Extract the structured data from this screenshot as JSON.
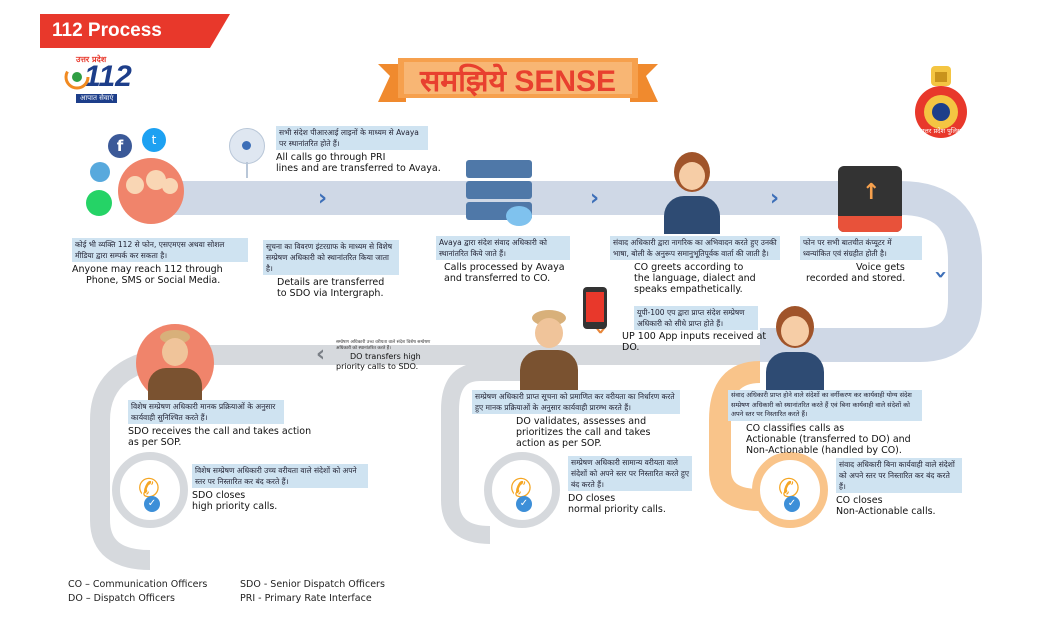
{
  "header": {
    "badge_label": "112 Process",
    "logo_top": "उत्तर प्रदेश",
    "logo_number": "112",
    "logo_bottom": "आपात सेवाएं",
    "badge_color": "#e8382b"
  },
  "banner": {
    "title": "समझिये  SENSE",
    "banner_color": "#f6a04d",
    "title_color": "#e8402f"
  },
  "emblem": {
    "text": "उत्तर प्रदेश पुलिस"
  },
  "colors": {
    "top_track": "#cfd8e6",
    "middle_track": "#d6d9dd",
    "orange_track": "#f9c48a",
    "chevron": "#3d6fb8",
    "phone_badge": "#f5a623"
  },
  "steps": [
    {
      "hi": "कोई भी व्यक्ति 112 से फोन, एसएमएस अथवा सोशल मीडिया द्वारा सम्पर्क कर सकता है।",
      "en_1": "Anyone may reach 112 through",
      "en_2": "Phone, SMS or Social Media."
    },
    {
      "hi": "सभी संदेश पीआरआई लाइनों के माध्यम से Avaya पर स्थानांतरित होते हैं।",
      "en_1": "All calls go through PRI",
      "en_2": "lines and are transferred to Avaya."
    },
    {
      "hi": "सूचना का विवरण इंटरग्राफ के माध्यम से विशेष सम्प्रेषण अधिकारी को स्थानांतरित किया जाता है।",
      "en_1": "Details are transferred",
      "en_2": "to SDO via Intergraph."
    },
    {
      "hi": "Avaya द्वारा संदेश संवाद अधिकारी को स्थानांतरित किये जाते हैं।",
      "en_1": "Calls processed by Avaya",
      "en_2": "and transferred to CO."
    },
    {
      "hi": "संवाद अधिकारी द्वारा नागरिक का अभिवादन करते हुए उनकी भाषा, बोली के अनुरूप समानुभूतिपूर्वक वार्ता की जाती है।",
      "en_1": "CO  greets according to",
      "en_2": "the language, dialect and",
      "en_3": "speaks empathetically."
    },
    {
      "hi": "फोन पर सभी बातचीत कंप्यूटर में ध्वन्यांकित एवं संग्रहीत होती है।",
      "en_1": "Voice gets",
      "en_2": "recorded and stored."
    },
    {
      "hi": "यूपी-100 एप द्वारा प्राप्त संदेश सम्प्रेषण अधिकारी को सीधे प्राप्त होते हैं।",
      "en_1": "UP 100 App inputs received at DO."
    },
    {
      "hi": "सम्प्रेषण अधिकारी उच्च वरीयता वाले संदेश विशेष सम्प्रेषण अधिकारी को स्थानांतरित करते हैं।",
      "en_1": "DO transfers high",
      "en_2": "priority calls to SDO."
    },
    {
      "hi": "सम्प्रेषण अधिकारी प्राप्त सूचना को प्रमाणित कर वरीयता का निर्धारण करते हुए मानक प्रक्रियाओं के अनुसार कार्यवाही प्रारम्भ करते हैं।",
      "en_1": "DO validates, assesses and",
      "en_2": "prioritizes the call and takes",
      "en_3": "action as per SOP."
    },
    {
      "hi": "संवाद अधिकारी प्राप्त होने वाले संदेशों का वर्गीकरण कर कार्यवाही योग्य संदेश सम्प्रेषण अधिकारी को स्थानांतरित करते हैं एवं बिना कार्यवाही वाले संदेशों को अपने स्तर पर निस्तारित करते हैं।",
      "en_1": "CO classifies calls as",
      "en_2": "Actionable (transferred to DO) and",
      "en_3": "Non-Actionable (handled by CO)."
    },
    {
      "hi": "विशेष सम्प्रेषण अधिकारी मानक प्रक्रियाओं के अनुसार कार्यवाही सुनिश्चित करते हैं।",
      "en_1": "SDO receives the call and takes action",
      "en_2": "as per SOP."
    },
    {
      "hi": "विशेष सम्प्रेषण अधिकारी उच्च वरीयता वाले संदेशों को अपने स्तर पर निस्तारित कर बंद करते हैं।",
      "en_1": "SDO closes",
      "en_2": "high priority calls."
    },
    {
      "hi": "सम्प्रेषण अधिकारी सामान्य वरीयता वाले संदेशों को अपने स्तर पर निस्तारित करते हुए बंद करते हैं।",
      "en_1": "DO closes",
      "en_2": "normal priority calls."
    },
    {
      "hi": "संवाद अधिकारी बिना कार्यवाही वाले संदेशों को अपने स्तर पर निस्तारित कर बंद करते हैं।",
      "en_1": "CO closes",
      "en_2": "Non-Actionable calls."
    }
  ],
  "legend": {
    "co": "CO – Communication Officers",
    "do": "DO – Dispatch Officers",
    "sdo": "SDO - Senior Dispatch Officers",
    "pri": "PRI - Primary Rate Interface"
  },
  "icons": {
    "social": "social-media-icons",
    "network": "network-hub-icon",
    "server": "server-cloud-icon",
    "recorder": "recorder-box-icon",
    "phone_close": "phone-check-icon",
    "mobile_app": "mobile-app-icon"
  }
}
